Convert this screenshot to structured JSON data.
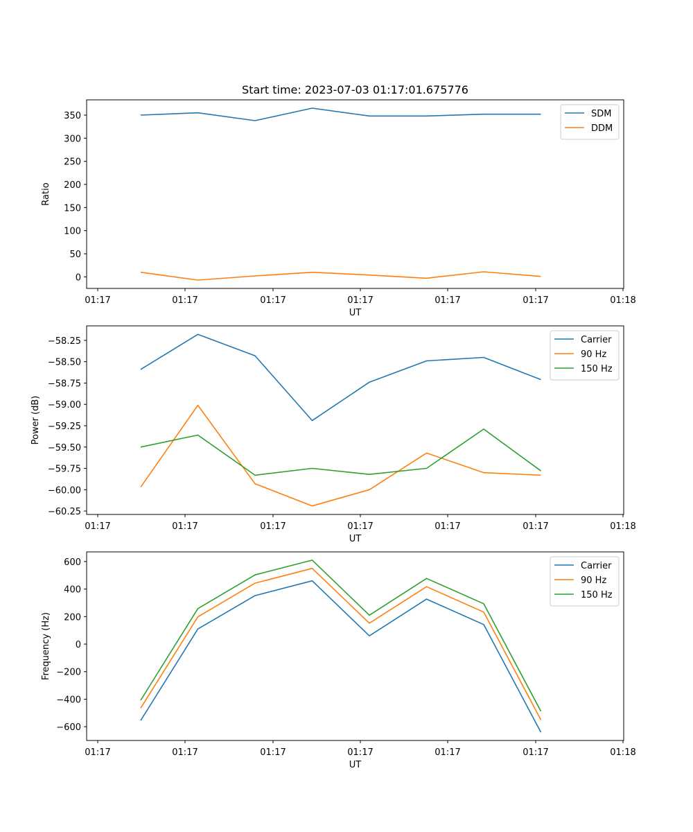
{
  "chart_data": [
    {
      "type": "line",
      "title": "Start time: 2023-07-03 01:17:01.675776",
      "xlabel": "UT",
      "ylabel": "Ratio",
      "x_ticks": [
        "01:17",
        "01:17",
        "01:17",
        "01:17",
        "01:17",
        "01:17",
        "01:18"
      ],
      "x_count": 8,
      "ylim": [
        -25,
        383
      ],
      "yticks": [
        0,
        50,
        100,
        150,
        200,
        250,
        300,
        350
      ],
      "ytick_labels": [
        "0",
        "50",
        "100",
        "150",
        "200",
        "250",
        "300",
        "350"
      ],
      "legend": "top-right",
      "series": [
        {
          "name": "SDM",
          "color": "#1f77b4",
          "values": [
            350,
            355,
            338,
            365,
            348,
            348,
            352,
            352
          ]
        },
        {
          "name": "DDM",
          "color": "#ff7f0e",
          "values": [
            10,
            -7,
            2,
            10,
            4,
            -3,
            11,
            1
          ]
        }
      ]
    },
    {
      "type": "line",
      "title": "",
      "xlabel": "UT",
      "ylabel": "Power (dB)",
      "x_ticks": [
        "01:17",
        "01:17",
        "01:17",
        "01:17",
        "01:17",
        "01:17",
        "01:18"
      ],
      "x_count": 8,
      "ylim": [
        -60.29,
        -58.08
      ],
      "yticks": [
        -60.25,
        -60.0,
        -59.75,
        -59.5,
        -59.25,
        -59.0,
        -58.75,
        -58.5,
        -58.25
      ],
      "ytick_labels": [
        "−60.25",
        "−60.00",
        "−59.75",
        "−59.50",
        "−59.25",
        "−59.00",
        "−58.75",
        "−58.50",
        "−58.25"
      ],
      "legend": "top-right",
      "series": [
        {
          "name": "Carrier",
          "color": "#1f77b4",
          "values": [
            -58.59,
            -58.18,
            -58.43,
            -59.19,
            -58.74,
            -58.49,
            -58.45,
            -58.71
          ]
        },
        {
          "name": "90 Hz",
          "color": "#ff7f0e",
          "values": [
            -59.97,
            -59.01,
            -59.93,
            -60.19,
            -60.0,
            -59.57,
            -59.8,
            -59.83
          ]
        },
        {
          "name": "150 Hz",
          "color": "#2ca02c",
          "values": [
            -59.5,
            -59.36,
            -59.83,
            -59.75,
            -59.82,
            -59.75,
            -59.29,
            -59.78
          ]
        }
      ]
    },
    {
      "type": "line",
      "title": "",
      "xlabel": "UT",
      "ylabel": "Frequency (Hz)",
      "x_ticks": [
        "01:17",
        "01:17",
        "01:17",
        "01:17",
        "01:17",
        "01:17",
        "01:18"
      ],
      "x_count": 8,
      "ylim": [
        -700,
        670
      ],
      "yticks": [
        -600,
        -400,
        -200,
        0,
        200,
        400,
        600
      ],
      "ytick_labels": [
        "−600",
        "−400",
        "−200",
        "0",
        "200",
        "400",
        "600"
      ],
      "legend": "top-right",
      "series": [
        {
          "name": "Carrier",
          "color": "#1f77b4",
          "values": [
            -555,
            110,
            352,
            460,
            60,
            327,
            142,
            -640
          ]
        },
        {
          "name": "90 Hz",
          "color": "#ff7f0e",
          "values": [
            -465,
            198,
            443,
            550,
            152,
            417,
            233,
            -550
          ]
        },
        {
          "name": "150 Hz",
          "color": "#2ca02c",
          "values": [
            -408,
            258,
            503,
            610,
            210,
            477,
            293,
            -488
          ]
        }
      ]
    }
  ]
}
